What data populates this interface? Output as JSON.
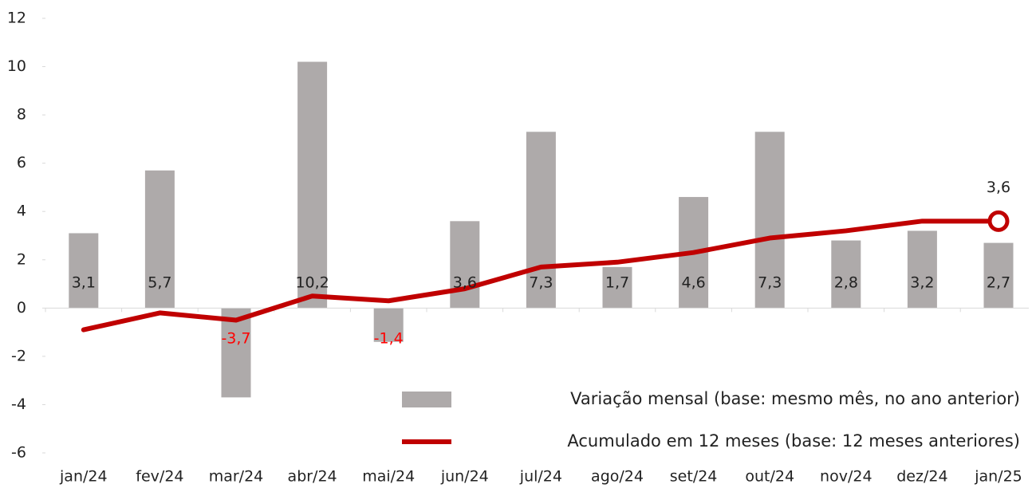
{
  "chart_data": {
    "type": "combo",
    "categories": [
      "jan/24",
      "fev/24",
      "mar/24",
      "abr/24",
      "mai/24",
      "jun/24",
      "jul/24",
      "ago/24",
      "set/24",
      "out/24",
      "nov/24",
      "dez/24",
      "jan/25"
    ],
    "series": [
      {
        "name": "Variação mensal (base: mesmo mês, no ano anterior)",
        "type": "bar",
        "color": "#aeaaaa",
        "values": [
          3.1,
          5.7,
          -3.7,
          10.2,
          -1.4,
          3.6,
          7.3,
          1.7,
          4.6,
          7.3,
          2.8,
          3.2,
          2.7
        ],
        "value_labels": [
          "3,1",
          "5,7",
          "-3,7",
          "10,2",
          "-1,4",
          "3,6",
          "7,3",
          "1,7",
          "4,6",
          "7,3",
          "2,8",
          "3,2",
          "2,7"
        ],
        "negative_label_color": "#ff0000"
      },
      {
        "name": "Acumulado em 12 meses (base: 12 meses anteriores)",
        "type": "line",
        "color": "#c00000",
        "values": [
          -0.9,
          -0.2,
          -0.5,
          0.5,
          0.3,
          0.8,
          1.7,
          1.9,
          2.3,
          2.9,
          3.2,
          3.6,
          3.6
        ],
        "value_labels": [
          null,
          null,
          null,
          null,
          null,
          null,
          null,
          null,
          null,
          null,
          null,
          null,
          "3,6"
        ]
      }
    ],
    "ylim": [
      -6,
      12
    ],
    "yticks": [
      -6,
      -4,
      -2,
      0,
      2,
      4,
      6,
      8,
      10,
      12
    ],
    "grid": false,
    "legend": "lower right"
  }
}
